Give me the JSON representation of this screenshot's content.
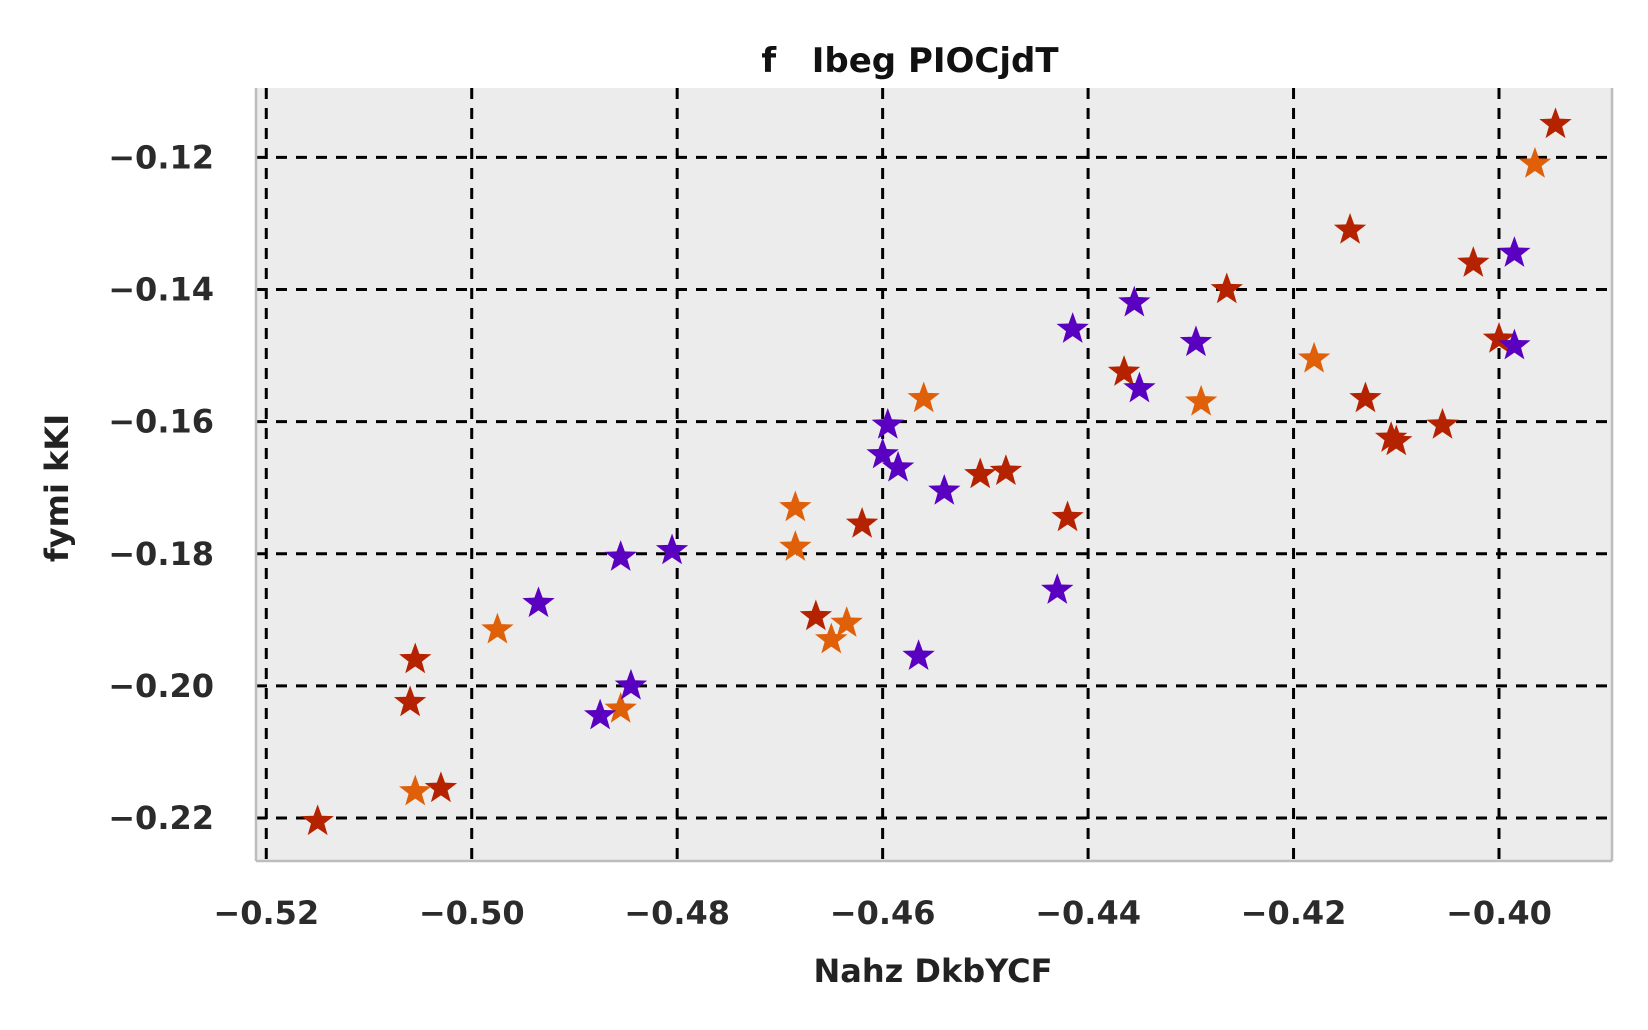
{
  "chart_data": {
    "type": "scatter",
    "title": "f   Ibeg PIOCjdT",
    "xlabel": "Nahz DkbYCF",
    "ylabel": "fymi kKI",
    "xlim": [
      -0.521,
      -0.389
    ],
    "ylim": [
      -0.2265,
      -0.1095
    ],
    "xticks": [
      -0.52,
      -0.5,
      -0.48,
      -0.46,
      -0.44,
      -0.42,
      -0.4
    ],
    "xtick_labels": [
      "−0.52",
      "−0.50",
      "−0.48",
      "−0.46",
      "−0.44",
      "−0.42",
      "−0.40"
    ],
    "yticks": [
      -0.22,
      -0.2,
      -0.18,
      -0.16,
      -0.14,
      -0.12
    ],
    "ytick_labels": [
      "−0.22",
      "−0.20",
      "−0.18",
      "−0.16",
      "−0.14",
      "−0.12"
    ],
    "grid": true,
    "grid_style": "dashed",
    "marker": "star",
    "background": "#ececec",
    "series": [
      {
        "color": "#b52200",
        "points": [
          [
            -0.515,
            -0.2205
          ],
          [
            -0.503,
            -0.2155
          ],
          [
            -0.506,
            -0.2025
          ],
          [
            -0.5055,
            -0.196
          ],
          [
            -0.4665,
            -0.1895
          ],
          [
            -0.462,
            -0.1755
          ],
          [
            -0.4505,
            -0.168
          ],
          [
            -0.448,
            -0.1675
          ],
          [
            -0.442,
            -0.1745
          ],
          [
            -0.4365,
            -0.1525
          ],
          [
            -0.4265,
            -0.14
          ],
          [
            -0.4145,
            -0.131
          ],
          [
            -0.413,
            -0.1565
          ],
          [
            -0.4105,
            -0.1625
          ],
          [
            -0.41,
            -0.163
          ],
          [
            -0.4055,
            -0.1605
          ],
          [
            -0.4025,
            -0.136
          ],
          [
            -0.4,
            -0.1475
          ],
          [
            -0.3945,
            -0.115
          ]
        ]
      },
      {
        "color": "#e0600a",
        "points": [
          [
            -0.5055,
            -0.216
          ],
          [
            -0.4855,
            -0.2035
          ],
          [
            -0.4975,
            -0.1915
          ],
          [
            -0.4685,
            -0.173
          ],
          [
            -0.4685,
            -0.179
          ],
          [
            -0.465,
            -0.193
          ],
          [
            -0.4635,
            -0.1905
          ],
          [
            -0.456,
            -0.1565
          ],
          [
            -0.429,
            -0.157
          ],
          [
            -0.418,
            -0.1505
          ],
          [
            -0.3965,
            -0.121
          ]
        ]
      },
      {
        "color": "#5a00c0",
        "points": [
          [
            -0.4875,
            -0.2045
          ],
          [
            -0.4845,
            -0.2
          ],
          [
            -0.4935,
            -0.1875
          ],
          [
            -0.4855,
            -0.1805
          ],
          [
            -0.4805,
            -0.1795
          ],
          [
            -0.46,
            -0.165
          ],
          [
            -0.4595,
            -0.1605
          ],
          [
            -0.4585,
            -0.167
          ],
          [
            -0.454,
            -0.1705
          ],
          [
            -0.4565,
            -0.1955
          ],
          [
            -0.443,
            -0.1855
          ],
          [
            -0.4415,
            -0.146
          ],
          [
            -0.4355,
            -0.142
          ],
          [
            -0.435,
            -0.155
          ],
          [
            -0.4295,
            -0.148
          ],
          [
            -0.3985,
            -0.1345
          ],
          [
            -0.3985,
            -0.1485
          ]
        ]
      }
    ]
  }
}
